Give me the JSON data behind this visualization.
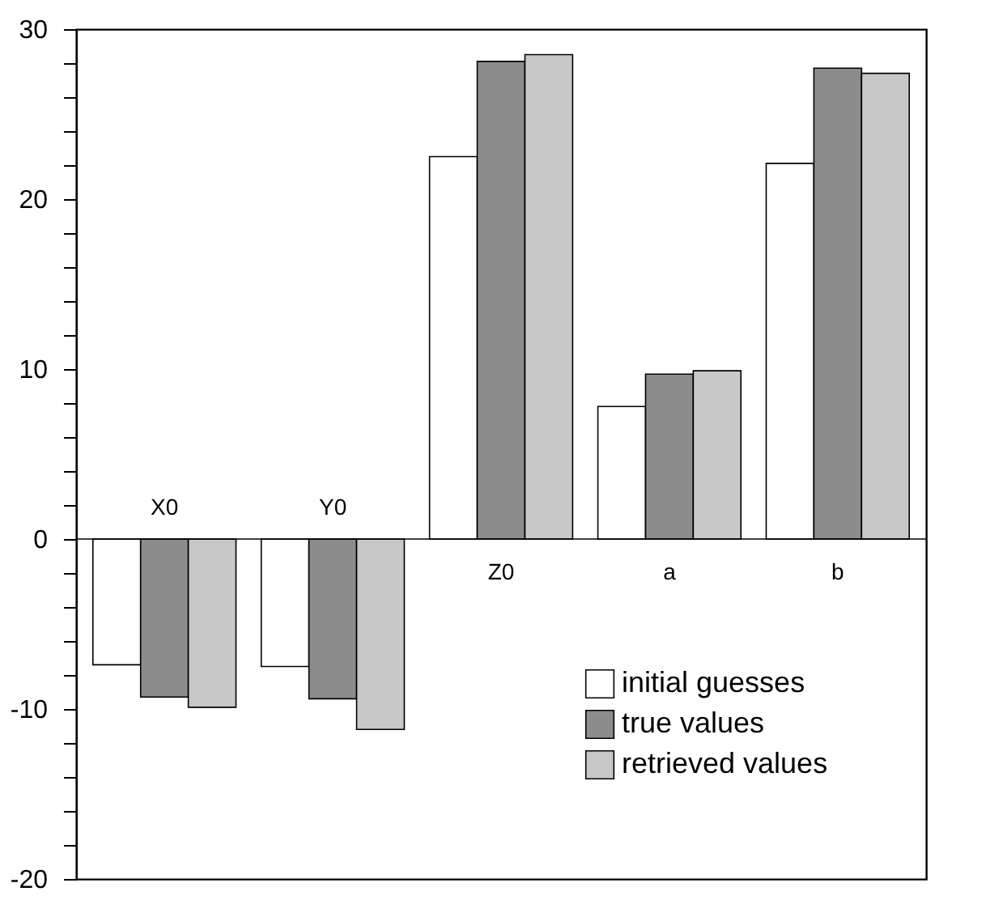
{
  "chart_data": {
    "type": "bar",
    "categories": [
      "X0",
      "Y0",
      "Z0",
      "a",
      "b"
    ],
    "series": [
      {
        "name": "initial guesses",
        "color": "#ffffff",
        "values": [
          -7.4,
          -7.5,
          22.5,
          7.8,
          22.1
        ]
      },
      {
        "name": "true values",
        "color": "#8c8c8c",
        "values": [
          -9.3,
          -9.4,
          28.1,
          9.7,
          27.7
        ]
      },
      {
        "name": "retrieved values",
        "color": "#c8c8c8",
        "values": [
          -9.9,
          -11.2,
          28.5,
          9.9,
          27.4
        ]
      }
    ],
    "ylim": [
      -20,
      30
    ],
    "yticks": [
      -20,
      {
        "value": -18,
        "label": null
      },
      {
        "value": -16,
        "label": null
      },
      {
        "value": -14,
        "label": null
      },
      {
        "value": -12,
        "label": null
      },
      -10,
      {
        "value": -8,
        "label": null
      },
      {
        "value": -6,
        "label": null
      },
      {
        "value": -4,
        "label": null
      },
      {
        "value": -2,
        "label": null
      },
      0,
      {
        "value": 2,
        "label": null
      },
      {
        "value": 4,
        "label": null
      },
      {
        "value": 6,
        "label": null
      },
      {
        "value": 8,
        "label": null
      },
      10,
      {
        "value": 12,
        "label": null
      },
      {
        "value": 14,
        "label": null
      },
      {
        "value": 16,
        "label": null
      },
      {
        "value": 18,
        "label": null
      },
      20,
      {
        "value": 22,
        "label": null
      },
      {
        "value": 24,
        "label": null
      },
      {
        "value": 26,
        "label": null
      },
      {
        "value": 28,
        "label": null
      },
      30
    ],
    "grid": false,
    "legend": "bottom right"
  }
}
